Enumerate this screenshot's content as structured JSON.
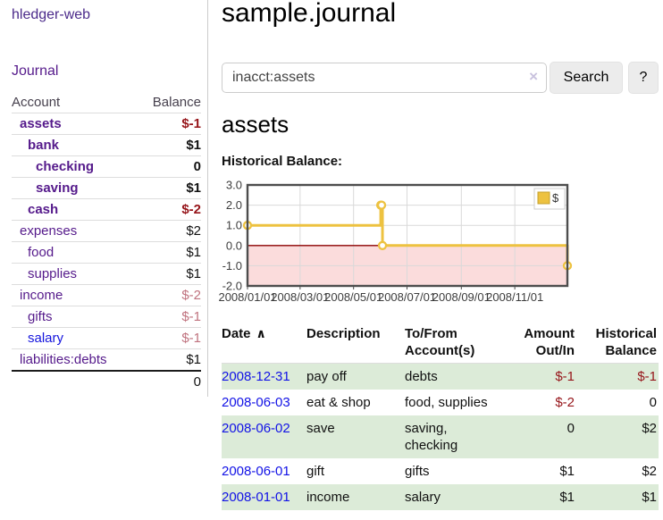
{
  "app": {
    "brand": "hledger-web"
  },
  "sidebar": {
    "journal_link": "Journal",
    "accounts_header": {
      "account": "Account",
      "balance": "Balance"
    },
    "accounts": [
      {
        "name": "assets",
        "indent": 1,
        "bold": true,
        "balance": "$-1",
        "balance_style": "neg"
      },
      {
        "name": "bank",
        "indent": 2,
        "bold": true,
        "balance": "$1",
        "balance_style": "pos"
      },
      {
        "name": "checking",
        "indent": 3,
        "bold": true,
        "balance": "0",
        "balance_style": "pos"
      },
      {
        "name": "saving",
        "indent": 3,
        "bold": true,
        "balance": "$1",
        "balance_style": "pos"
      },
      {
        "name": "cash",
        "indent": 2,
        "bold": true,
        "balance": "$-2",
        "balance_style": "neg"
      },
      {
        "name": "expenses",
        "indent": 1,
        "bold": false,
        "balance": "$2",
        "balance_style": "pos"
      },
      {
        "name": "food",
        "indent": 2,
        "bold": false,
        "balance": "$1",
        "balance_style": "pos"
      },
      {
        "name": "supplies",
        "indent": 2,
        "bold": false,
        "balance": "$1",
        "balance_style": "pos"
      },
      {
        "name": "income",
        "indent": 1,
        "bold": false,
        "balance": "$-2",
        "balance_style": "neg-light"
      },
      {
        "name": "gifts",
        "indent": 2,
        "bold": false,
        "balance": "$-1",
        "balance_style": "neg-light"
      },
      {
        "name": "salary",
        "indent": 2,
        "bold": false,
        "balance": "$-1",
        "balance_style": "neg-light",
        "link_style": "blue"
      },
      {
        "name": "liabilities:debts",
        "indent": 1,
        "bold": false,
        "balance": "$1",
        "balance_style": "pos"
      }
    ],
    "total": "0"
  },
  "main": {
    "title": "sample.journal",
    "search": {
      "value": "inacct:assets",
      "clear_icon": "×",
      "button_label": "Search",
      "help_label": "?"
    },
    "account_heading": "assets"
  },
  "register": {
    "headers": {
      "date": "Date",
      "sort_icon": "∧",
      "description": "Description",
      "accounts": "To/From Account(s)",
      "amount": "Amount Out/In",
      "balance": "Historical Balance"
    },
    "rows": [
      {
        "date": "2008-12-31",
        "description": "pay off",
        "accounts": "debts",
        "amount": "$-1",
        "amount_style": "neg",
        "balance": "$-1",
        "balance_style": "neg"
      },
      {
        "date": "2008-06-03",
        "description": "eat & shop",
        "accounts": "food, supplies",
        "amount": "$-2",
        "amount_style": "neg",
        "balance": "0",
        "balance_style": "pos"
      },
      {
        "date": "2008-06-02",
        "description": "save",
        "accounts": "saving, checking",
        "amount": "0",
        "amount_style": "pos",
        "balance": "$2",
        "balance_style": "pos"
      },
      {
        "date": "2008-06-01",
        "description": "gift",
        "accounts": "gifts",
        "amount": "$1",
        "amount_style": "pos",
        "balance": "$2",
        "balance_style": "pos"
      },
      {
        "date": "2008-01-01",
        "description": "income",
        "accounts": "salary",
        "amount": "$1",
        "amount_style": "pos",
        "balance": "$1",
        "balance_style": "pos"
      }
    ]
  },
  "chart_data": {
    "type": "line",
    "step": true,
    "title": "Historical Balance:",
    "legend": {
      "label": "$",
      "position": "top-right"
    },
    "series": [
      {
        "name": "$",
        "color": "#EDC240",
        "points": [
          [
            "2008-01-01",
            1
          ],
          [
            "2008-06-01",
            2
          ],
          [
            "2008-06-02",
            2
          ],
          [
            "2008-06-03",
            0
          ],
          [
            "2008-12-31",
            -1
          ]
        ]
      }
    ],
    "x_range": [
      "2008-01-01",
      "2008-12-31"
    ],
    "ylim": [
      -2,
      3
    ],
    "x_ticks": [
      {
        "label": "2008/01/01",
        "date": "2008-01-01"
      },
      {
        "label": "2008/03/01",
        "date": "2008-03-01"
      },
      {
        "label": "2008/05/01",
        "date": "2008-05-01"
      },
      {
        "label": "2008/07/01",
        "date": "2008-07-01"
      },
      {
        "label": "2008/09/01",
        "date": "2008-09-01"
      },
      {
        "label": "2008/11/01",
        "date": "2008-11-01"
      }
    ],
    "y_ticks": [
      {
        "label": "3.0",
        "value": 3
      },
      {
        "label": "2.0",
        "value": 2
      },
      {
        "label": "1.0",
        "value": 1
      },
      {
        "label": "0.0",
        "value": 0
      },
      {
        "label": "-1.0",
        "value": -1
      },
      {
        "label": "-2.0",
        "value": -2
      }
    ],
    "grid": true,
    "colors": {
      "negative_region_fill": "#fbdcdc",
      "zero_line": "#8b0000",
      "gridline": "#d9d9d9",
      "border": "#4d4d4d",
      "marker_fill": "#ffffff"
    }
  },
  "colors": {
    "link_purple": "#551a8b",
    "link_blue": "#1414dd",
    "negative_strong": "#96151a",
    "negative_light": "#c0737f",
    "row_stripe_green": "#dcebd8",
    "series_gold": "#EDC240"
  }
}
